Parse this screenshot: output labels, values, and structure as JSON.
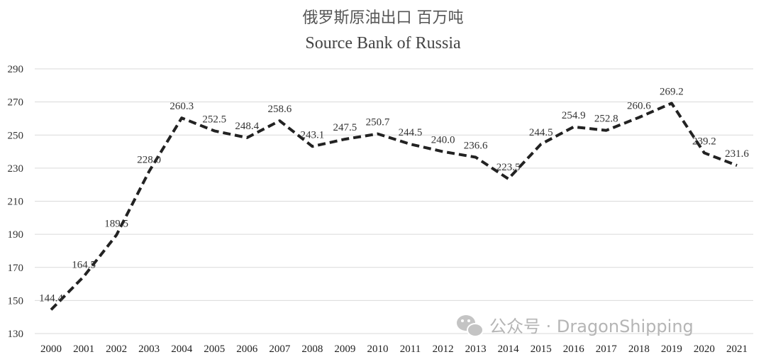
{
  "chart_data": {
    "type": "line",
    "title": "俄罗斯原油出口 百万吨",
    "subtitle": "Source Bank of Russia",
    "x": [
      "2000",
      "2001",
      "2002",
      "2003",
      "2004",
      "2005",
      "2006",
      "2007",
      "2008",
      "2009",
      "2010",
      "2011",
      "2012",
      "2013",
      "2014",
      "2015",
      "2016",
      "2017",
      "2018",
      "2019",
      "2020",
      "2021"
    ],
    "series": [
      {
        "values": [
          144.4,
          164.5,
          189.5,
          228.0,
          260.3,
          252.5,
          248.4,
          258.6,
          243.1,
          247.5,
          250.7,
          244.5,
          240.0,
          236.6,
          223.5,
          244.5,
          254.9,
          252.8,
          260.6,
          269.2,
          239.2,
          231.6
        ],
        "labels": [
          "144.4",
          "164.5",
          "189.5",
          "228.0",
          "260.3",
          "252.5",
          "248.4",
          "258.6",
          "243.1",
          "247.5",
          "250.7",
          "244.5",
          "240.0",
          "236.6",
          "223.5",
          "244.5",
          "254.9",
          "252.8",
          "260.6",
          "269.2",
          "239.2",
          "231.6"
        ],
        "color": "#222222",
        "dashed": true
      }
    ],
    "ylim": [
      130,
      290
    ],
    "yticks": [
      130,
      150,
      170,
      190,
      210,
      230,
      250,
      270,
      290
    ],
    "grid": true,
    "legend": "none"
  },
  "watermark": {
    "text": "公众号 · DragonShipping",
    "icon": "wechat-icon",
    "color": "#b5b5b5"
  },
  "colors": {
    "grid": "#d9d9d9",
    "line": "#222222",
    "axis_text": "#333333"
  }
}
